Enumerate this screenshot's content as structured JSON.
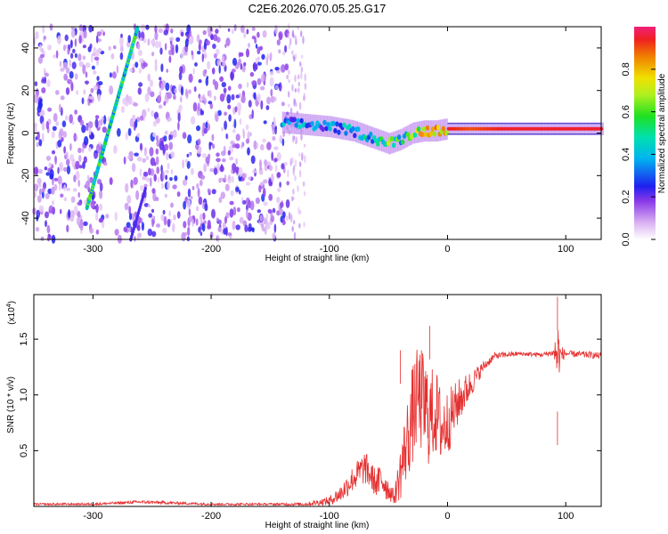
{
  "chart_data": [
    {
      "type": "heatmap",
      "title": "C2E6.2026.070.05.25.G17",
      "xlabel": "Height of straight line (km)",
      "ylabel": "Frequency (Hz)",
      "xlim": [
        -350,
        130
      ],
      "ylim": [
        -50,
        50
      ],
      "xticks": [
        -300,
        -200,
        -100,
        0,
        100
      ],
      "yticks": [
        -40,
        -20,
        0,
        20,
        40
      ],
      "colorbar": {
        "label": "Normalized spectral amplitude",
        "range": [
          0.0,
          1.0
        ],
        "ticks": [
          "0.0",
          "0.2",
          "0.4",
          "0.6",
          "0.8"
        ]
      },
      "ridge": {
        "x": [
          -140,
          -120,
          -100,
          -80,
          -60,
          -50,
          -40,
          -30,
          -20,
          -10,
          0,
          20,
          50,
          90,
          130
        ],
        "y": [
          5,
          4,
          3,
          1,
          -3,
          -5,
          -3,
          0,
          1,
          1,
          2,
          2,
          2,
          2,
          2
        ],
        "amplitude": [
          0.45,
          0.5,
          0.45,
          0.5,
          0.55,
          0.75,
          0.6,
          0.7,
          0.95,
          0.9,
          0.95,
          0.9,
          0.95,
          0.95,
          0.95
        ]
      },
      "diagonal_line": {
        "x": [
          -305,
          -262
        ],
        "y": [
          -35,
          50
        ]
      },
      "diagonal_line_lower": {
        "x": [
          -268,
          -255
        ],
        "y": [
          -50,
          -25
        ]
      }
    },
    {
      "type": "line",
      "xlabel": "Height of straight line (km)",
      "ylabel": "SNR (10 * v/v)",
      "yscale_label": "(x10",
      "yscale_exp": "4",
      "yscale_close": ")",
      "xlim": [
        -350,
        130
      ],
      "ylim": [
        0,
        1.9
      ],
      "xticks": [
        -300,
        -200,
        -100,
        0,
        100
      ],
      "yticks": [
        "0.5",
        "1.0",
        "1.5"
      ],
      "series": [
        {
          "name": "SNR",
          "color": "#e53030",
          "x": [
            -350,
            -300,
            -260,
            -200,
            -150,
            -120,
            -100,
            -90,
            -80,
            -70,
            -60,
            -55,
            -50,
            -45,
            -40,
            -35,
            -30,
            -25,
            -20,
            -15,
            -10,
            -5,
            0,
            10,
            20,
            30,
            40,
            60,
            80,
            90,
            93,
            95,
            100,
            120,
            130
          ],
          "values": [
            0.02,
            0.02,
            0.04,
            0.02,
            0.02,
            0.02,
            0.05,
            0.12,
            0.25,
            0.35,
            0.2,
            0.25,
            0.15,
            0.08,
            0.3,
            0.55,
            0.8,
            1.0,
            0.9,
            0.8,
            0.85,
            0.7,
            0.75,
            0.95,
            1.1,
            1.25,
            1.35,
            1.37,
            1.36,
            1.38,
            1.37,
            1.36,
            1.37,
            1.36,
            1.35
          ],
          "noise": [
            0.01,
            0.01,
            0.015,
            0.01,
            0.01,
            0.015,
            0.04,
            0.08,
            0.12,
            0.15,
            0.12,
            0.2,
            0.1,
            0.06,
            0.25,
            0.35,
            0.45,
            0.45,
            0.5,
            0.45,
            0.4,
            0.35,
            0.3,
            0.2,
            0.12,
            0.05,
            0.03,
            0.02,
            0.02,
            0.03,
            0.4,
            0.1,
            0.03,
            0.03,
            0.03
          ],
          "annotations": [
            {
              "x": -15,
              "y": 1.62
            },
            {
              "x": -40,
              "y": 1.4
            },
            {
              "x": 93,
              "y": 1.88
            },
            {
              "x": 93,
              "y": 0.85
            }
          ]
        }
      ]
    }
  ]
}
